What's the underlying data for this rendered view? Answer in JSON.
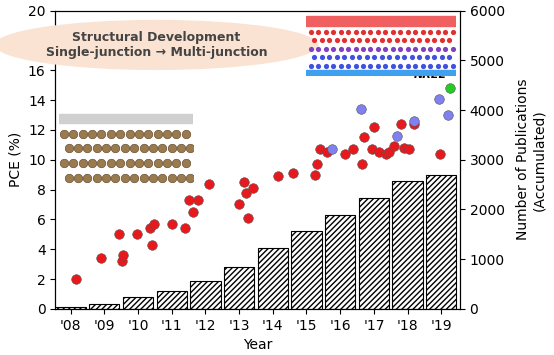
{
  "chart_data": {
    "type": "scatter",
    "annotations": [
      "Structural Development\nSingle-junction → Multi-junction"
    ],
    "x_label": "Year",
    "y_label": "PCE (%)",
    "y2_label": "Number of Publications\n(Accumulated)",
    "xlim": [
      2007.55,
      2019.55
    ],
    "xticks": [
      {
        "value": 2008,
        "label": "'08"
      },
      {
        "value": 2009,
        "label": "'09"
      },
      {
        "value": 2010,
        "label": "'10"
      },
      {
        "value": 2011,
        "label": "'11"
      },
      {
        "value": 2012,
        "label": "'12"
      },
      {
        "value": 2013,
        "label": "'13"
      },
      {
        "value": 2014,
        "label": "'14"
      },
      {
        "value": 2015,
        "label": "'15"
      },
      {
        "value": 2016,
        "label": "'16"
      },
      {
        "value": 2017,
        "label": "'17"
      },
      {
        "value": 2018,
        "label": "'18"
      },
      {
        "value": 2019,
        "label": "'19"
      }
    ],
    "ylim": [
      0,
      20
    ],
    "yticks": [
      0,
      2,
      4,
      6,
      8,
      10,
      12,
      14,
      16,
      18,
      20
    ],
    "y2lim": [
      0,
      6000
    ],
    "y2ticks": [
      0,
      1000,
      2000,
      3000,
      4000,
      5000,
      6000
    ],
    "series": [
      {
        "type": "bar",
        "axis": "y2",
        "color": "#000000",
        "x": [
          2008,
          2009,
          2010,
          2011,
          2012,
          2013,
          2014,
          2015,
          2016,
          2017,
          2018,
          2019
        ],
        "values": [
          40,
          100,
          240,
          360,
          570,
          850,
          1220,
          1560,
          1890,
          2230,
          2580,
          2700
        ]
      },
      {
        "type": "scatter",
        "color": "#e8191c",
        "marker": "circle",
        "x": [
          2008.15,
          2008.9,
          2009.52,
          2009.57,
          2009.45,
          2009.97,
          2010.37,
          2010.42,
          2010.47,
          2011.02,
          2011.39,
          2011.52,
          2011.62,
          2011.77,
          2012.11,
          2012.99,
          2013.16,
          2013.21,
          2013.26,
          2013.41,
          2014.16,
          2014.61,
          2015.26,
          2015.31,
          2015.41,
          2015.61,
          2016.13,
          2016.38,
          2016.65,
          2016.7,
          2016.95,
          2017.0,
          2017.15,
          2017.35,
          2017.45,
          2017.6,
          2017.8,
          2017.9,
          2018.05,
          2018.2,
          2018.95
        ],
        "values": [
          2.0,
          3.4,
          3.2,
          3.6,
          5.0,
          5.0,
          5.4,
          4.3,
          5.7,
          5.7,
          5.4,
          7.3,
          6.5,
          7.3,
          8.4,
          7.0,
          8.5,
          7.8,
          6.1,
          8.1,
          8.9,
          9.1,
          9.0,
          9.7,
          10.7,
          10.5,
          10.4,
          10.7,
          9.7,
          11.5,
          10.7,
          12.2,
          10.5,
          10.4,
          10.5,
          10.9,
          12.4,
          10.8,
          10.7,
          12.4,
          10.4
        ]
      },
      {
        "type": "scatter",
        "color": "#8080f0",
        "marker": "circle",
        "x": [
          2015.76,
          2016.63,
          2017.7,
          2018.2,
          2018.92,
          2019.2
        ],
        "values": [
          10.7,
          13.4,
          11.6,
          12.6,
          14.1,
          13.0
        ]
      },
      {
        "name": "NREL",
        "type": "scatter",
        "color": "#22cc22",
        "marker": "circle",
        "x": [
          2019.25
        ],
        "values": [
          14.8
        ]
      }
    ]
  }
}
